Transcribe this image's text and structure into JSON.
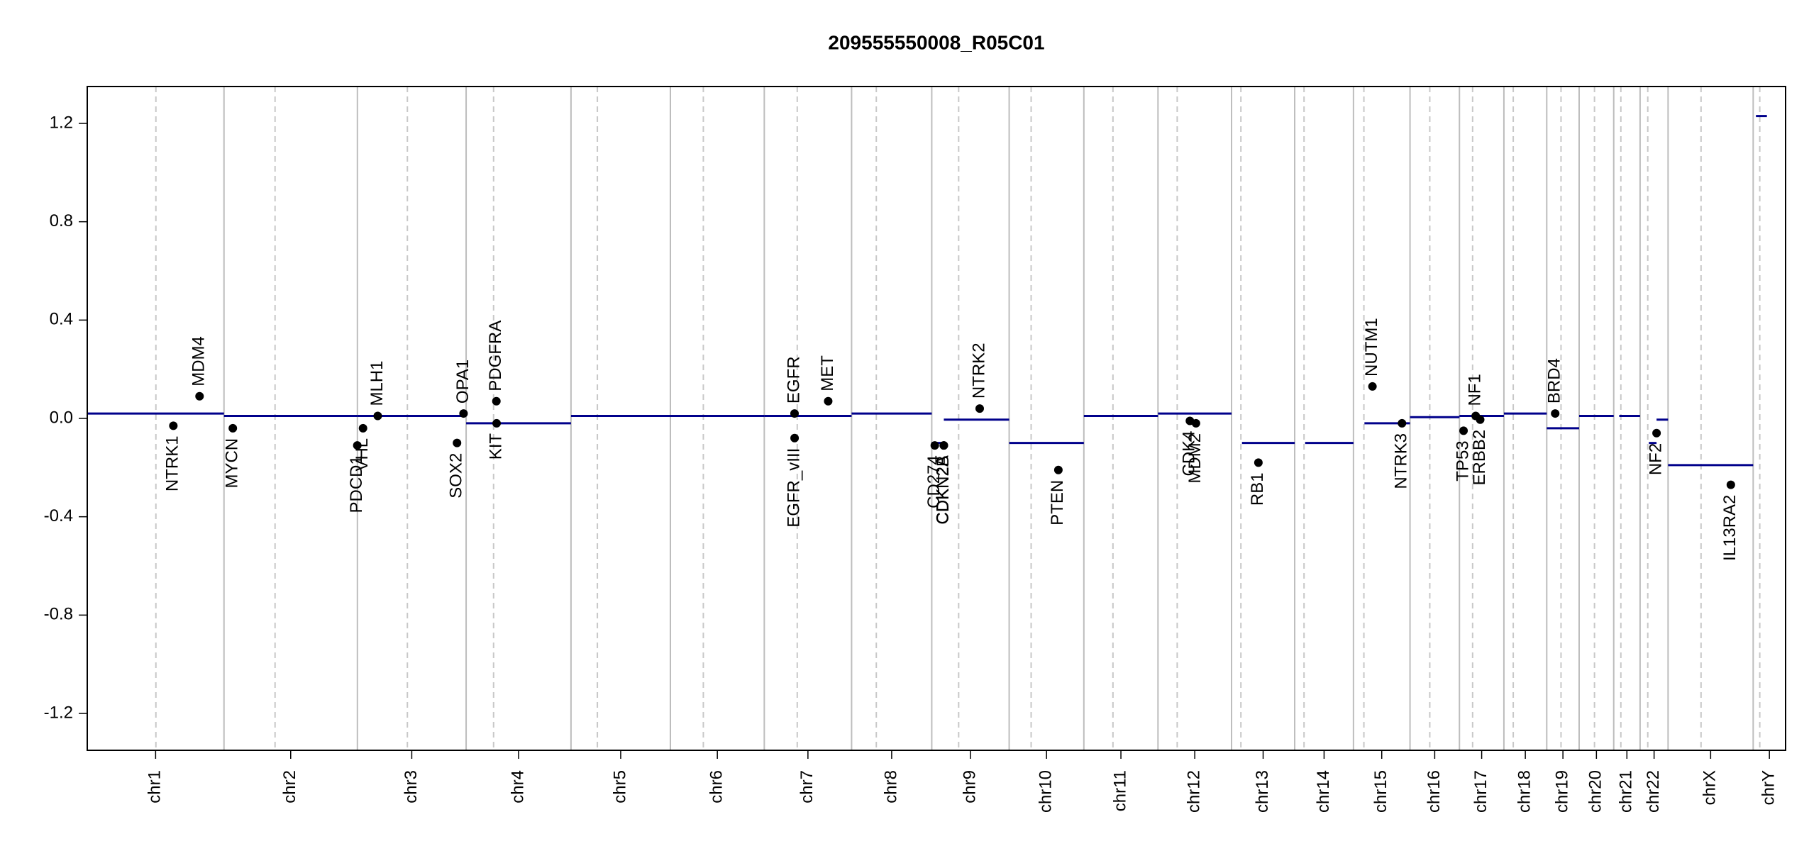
{
  "chart_data": {
    "type": "cnv",
    "title": "209555550008_R05C01",
    "categories": [
      "chr1",
      "chr2",
      "chr3",
      "chr4",
      "chr5",
      "chr6",
      "chr7",
      "chr8",
      "chr9",
      "chr10",
      "chr11",
      "chr12",
      "chr13",
      "chr14",
      "chr15",
      "chr16",
      "chr17",
      "chr18",
      "chr19",
      "chr20",
      "chr21",
      "chr22",
      "chrX",
      "chrY"
    ],
    "lengths": [
      249,
      243,
      198,
      191,
      181,
      171,
      159,
      146,
      141,
      136,
      135,
      134,
      115,
      107,
      103,
      90,
      81,
      78,
      59,
      63,
      48,
      51,
      155,
      59
    ],
    "centromeres": [
      125,
      93,
      91,
      50,
      48,
      60,
      60,
      45,
      49,
      40,
      53,
      35,
      17,
      17,
      19,
      36,
      24,
      17,
      26,
      28,
      13,
      14,
      60,
      12
    ],
    "ylim": [
      -1.35,
      1.35
    ],
    "yticks": [
      -1.2,
      -0.8,
      -0.4,
      {
        "value": 0,
        "label": "0.0"
      },
      0.4,
      0.8,
      1.2
    ],
    "segment_color": "#00008b",
    "segments": {
      "chrom": [
        0,
        1,
        2,
        3,
        4,
        5,
        6,
        7,
        8,
        8,
        9,
        10,
        11,
        12,
        13,
        14,
        15,
        16,
        17,
        18,
        19,
        20,
        21,
        21,
        22,
        23
      ],
      "start": [
        0,
        0,
        0,
        0,
        0,
        0,
        0,
        0,
        0,
        22,
        0,
        0,
        0,
        19,
        19,
        20,
        0,
        0,
        0,
        0,
        0,
        10,
        16,
        30,
        0,
        5
      ],
      "end": [
        249,
        243,
        198,
        191,
        181,
        171,
        159,
        146,
        22,
        141,
        136,
        135,
        134,
        115,
        107,
        103,
        90,
        81,
        78,
        59,
        63,
        48,
        30,
        51,
        155,
        25
      ],
      "values": [
        0.02,
        0.01,
        0.01,
        -0.02,
        0.01,
        0.01,
        0.01,
        0.02,
        -0.1,
        -0.005,
        -0.1,
        0.01,
        0.02,
        -0.1,
        -0.1,
        -0.02,
        0.005,
        0.01,
        0.02,
        -0.04,
        0.01,
        0.01,
        -0.1,
        -0.005,
        -0.19,
        1.23
      ]
    },
    "genes": {
      "names": [
        "NTRK1",
        "MDM4",
        "MYCN",
        "PDCD1",
        "VHL",
        "MLH1",
        "SOX2",
        "OPA1",
        "PDGFRA",
        "KIT",
        "EGFR",
        "EGFR_vIII",
        "MET",
        "CD274",
        "CDKN2A",
        "CDKN2B",
        "NTRK2",
        "PTEN",
        "CDK4",
        "MDM2",
        "RB1",
        "NUTM1",
        "NTRK3",
        "TP53",
        "NF1",
        "ERBB2",
        "BRD4",
        "NF2",
        "IL13RA2"
      ],
      "chrom": [
        0,
        0,
        1,
        1,
        2,
        2,
        2,
        2,
        3,
        3,
        6,
        6,
        6,
        8,
        8,
        8,
        8,
        9,
        11,
        11,
        12,
        14,
        14,
        16,
        16,
        16,
        18,
        21,
        22
      ],
      "pos": [
        156.8,
        204.5,
        16.1,
        242.8,
        10.2,
        37.0,
        181.4,
        193.3,
        55.1,
        55.5,
        55.1,
        55.2,
        116.4,
        5.5,
        21.9,
        22.0,
        87.3,
        89.6,
        58.1,
        69.2,
        48.9,
        34.6,
        88.4,
        7.5,
        29.6,
        37.8,
        15.4,
        30.0,
        114.3
      ],
      "values": [
        -0.03,
        0.09,
        -0.04,
        -0.11,
        -0.04,
        0.01,
        -0.1,
        0.02,
        0.07,
        -0.02,
        0.02,
        -0.08,
        0.07,
        -0.11,
        -0.11,
        -0.11,
        0.04,
        -0.21,
        -0.01,
        -0.02,
        -0.18,
        0.13,
        -0.02,
        -0.05,
        0.01,
        -0.005,
        0.02,
        -0.06,
        -0.27
      ]
    }
  }
}
